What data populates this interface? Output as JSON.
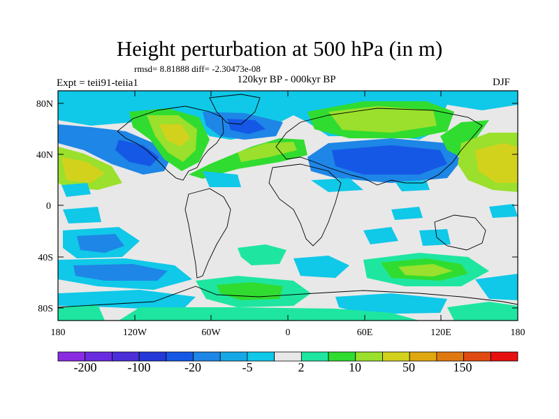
{
  "header": {
    "title": "Height perturbation at 500 hPa (in m)",
    "stats": "rmsd= 8.81888 diff= -2.30473e-08",
    "experiment": "Expt = teii91-teiia1",
    "period": "120kyr BP - 000kyr BP",
    "season": "DJF"
  },
  "map": {
    "projection": "cylindrical equidistant",
    "lon_range": [
      -180,
      180
    ],
    "lat_range": [
      -90,
      90
    ],
    "x_tick_labels": [
      "180",
      "120W",
      "60W",
      "0",
      "60E",
      "120E",
      "180"
    ],
    "y_tick_labels": [
      "80N",
      "40N",
      "0",
      "40S",
      "80S"
    ]
  },
  "colorbar": {
    "labels": [
      "-200",
      "-100",
      "-20",
      "-5",
      "2",
      "10",
      "50",
      "150"
    ],
    "colors": [
      "#8a2be2",
      "#6a2ce0",
      "#4b2fd8",
      "#2438d8",
      "#1558e6",
      "#1e86e6",
      "#16a8e6",
      "#10c8e8",
      "#e8e8e8",
      "#1ee6a0",
      "#30dc30",
      "#9ae02c",
      "#d2d21c",
      "#e0a810",
      "#e07810",
      "#e04a10",
      "#e61010"
    ]
  }
}
